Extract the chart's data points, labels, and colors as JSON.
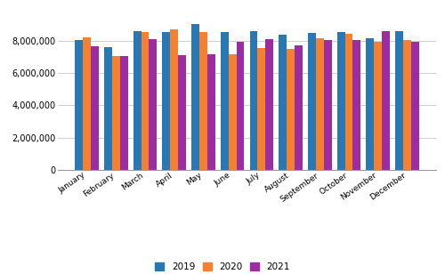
{
  "months": [
    "January",
    "February",
    "March",
    "April",
    "May",
    "June",
    "July",
    "August",
    "September",
    "October",
    "November",
    "December"
  ],
  "series": {
    "2019": [
      8050000,
      7600000,
      8600000,
      8550000,
      9000000,
      8550000,
      8600000,
      8350000,
      8450000,
      8550000,
      8150000,
      8600000
    ],
    "2020": [
      8200000,
      7050000,
      8500000,
      8700000,
      8500000,
      7150000,
      7550000,
      7500000,
      8150000,
      8400000,
      7900000,
      8050000
    ],
    "2021": [
      7650000,
      7050000,
      8100000,
      7100000,
      7150000,
      7900000,
      8100000,
      7700000,
      8050000,
      8050000,
      8600000,
      7900000
    ]
  },
  "colors": {
    "2019": "#2878b5",
    "2020": "#f58030",
    "2021": "#9b2da0"
  },
  "ylim": [
    0,
    10000000
  ],
  "yticks": [
    0,
    2000000,
    4000000,
    6000000,
    8000000
  ],
  "bar_width": 0.27,
  "grid_color": "#d0d0d0",
  "background_color": "#ffffff"
}
